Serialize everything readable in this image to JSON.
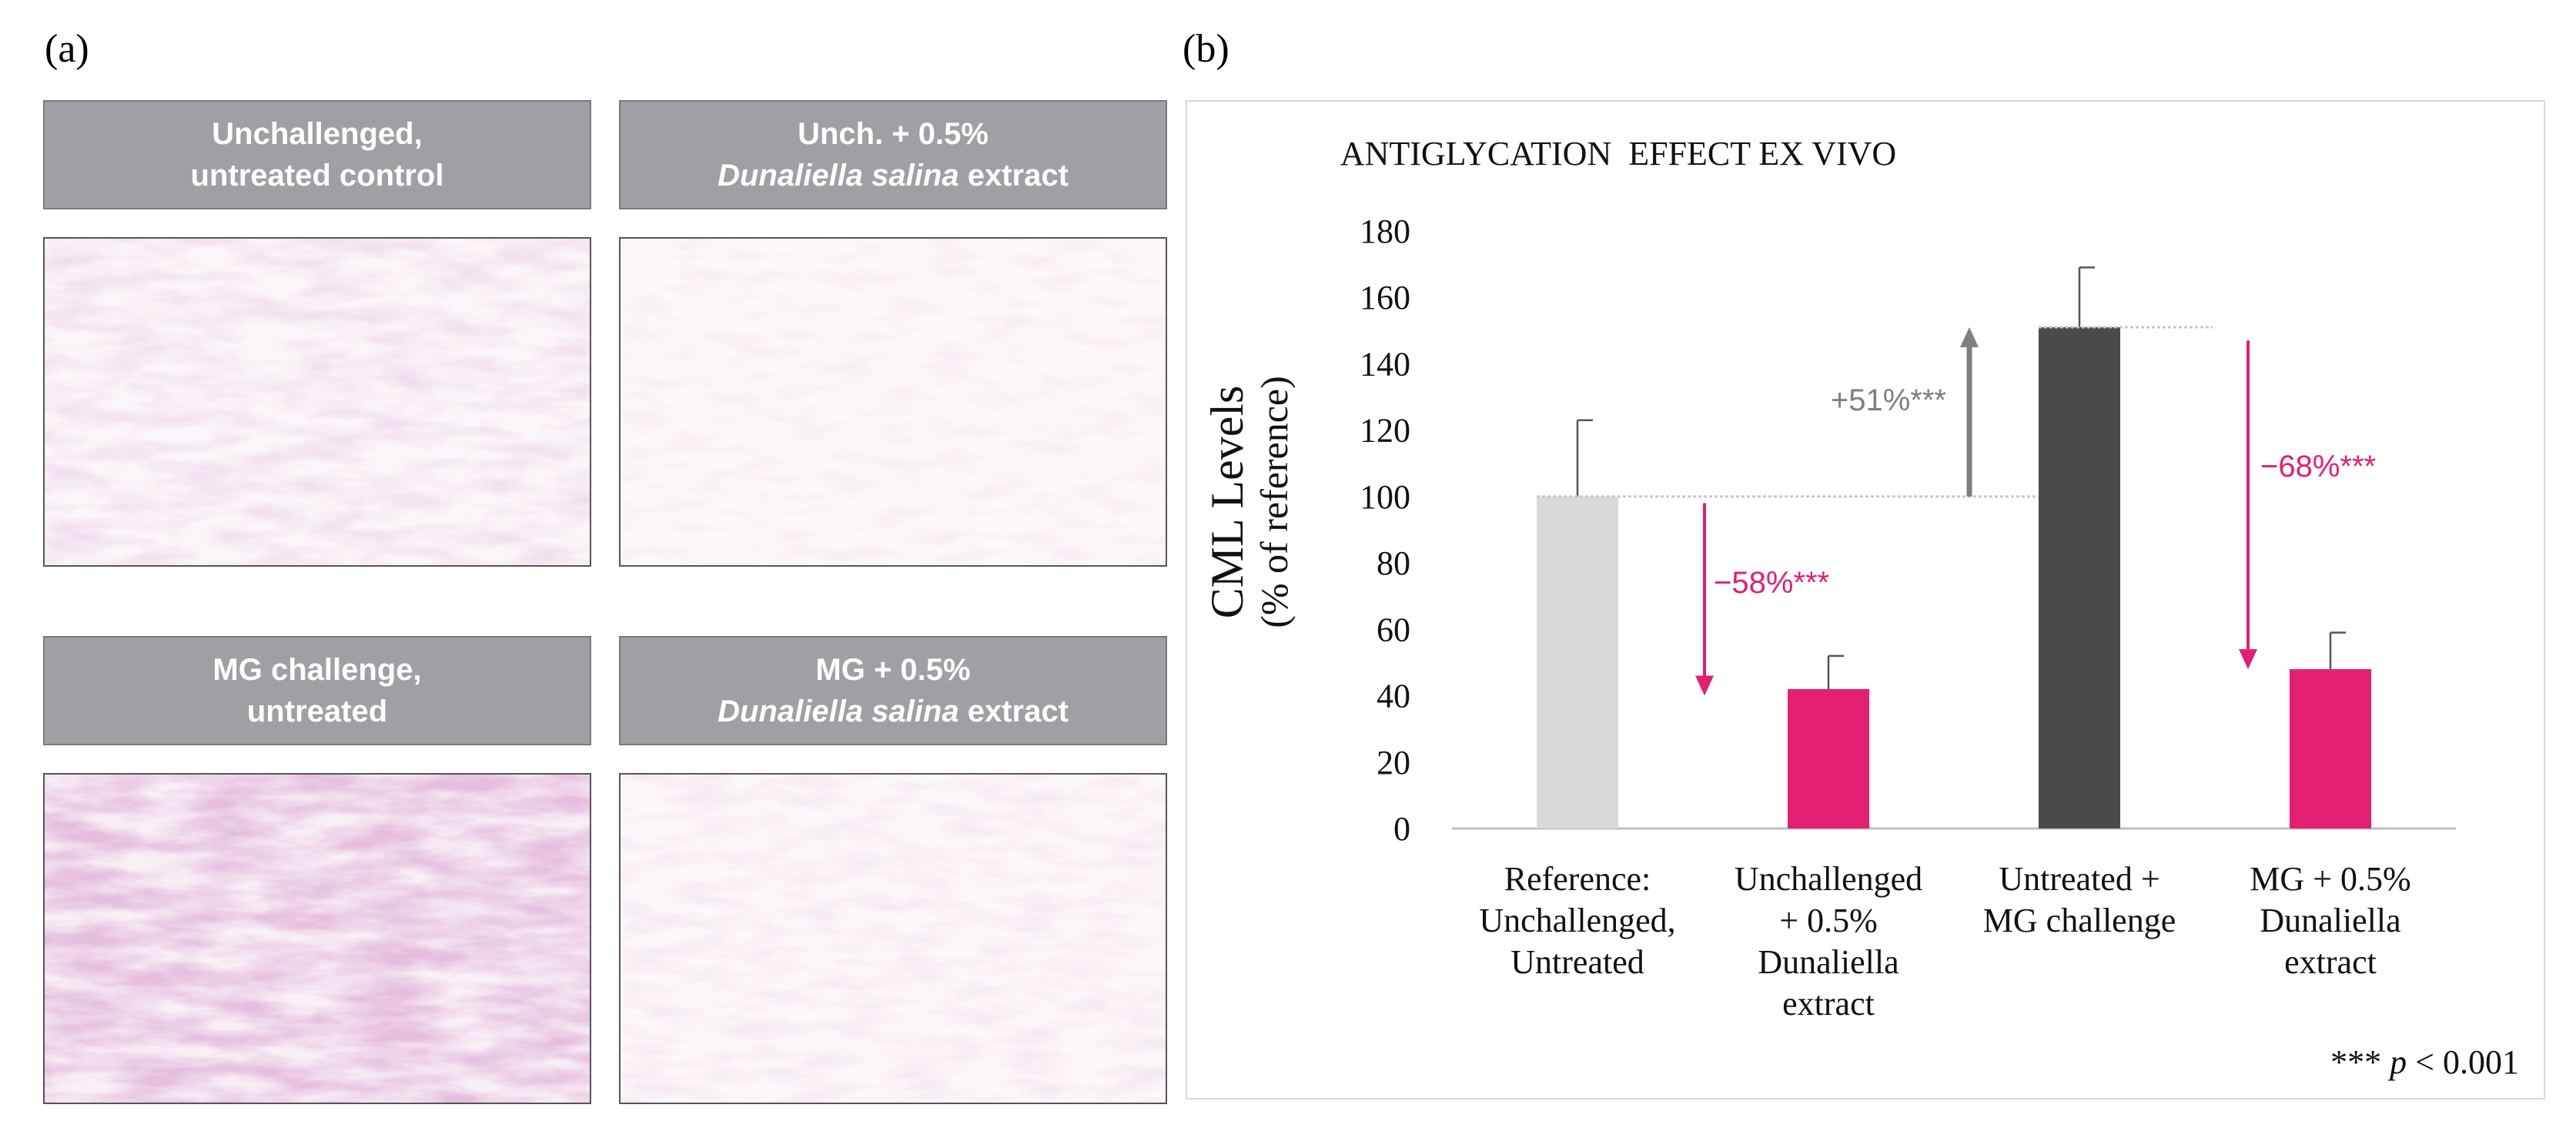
{
  "panel_a_label": "(a)",
  "panel_b_label": "(b)",
  "tiles": [
    {
      "line1": "Unchallenged,",
      "line2_pre": "",
      "line2_em": "",
      "line2_post": "untreated control"
    },
    {
      "line1": "Unch. + 0.5%",
      "line2_pre": "",
      "line2_em": "Dunaliella salina",
      "line2_post": " extract"
    },
    {
      "line1": "MG challenge,",
      "line2_pre": "",
      "line2_em": "",
      "line2_post": "untreated"
    },
    {
      "line1": "MG + 0.5%",
      "line2_pre": "",
      "line2_em": "Dunaliella salina",
      "line2_post": " extract"
    }
  ],
  "colors": {
    "reference": "#d9d9d9",
    "treated": "#e31f73",
    "mg": "#4a4a4a",
    "increase_arrow": "#7f7f7f",
    "header_bg": "#a0a0a4",
    "stain": "#c48ab8"
  },
  "chart_data": {
    "type": "bar",
    "title": "ANTIGLYCATION  EFFECT EX VIVO",
    "ylabel": "CML Levels",
    "ylabel_sub": "(% of reference)",
    "xlabel": "",
    "ylim": [
      0,
      180
    ],
    "yticks": [
      0,
      20,
      40,
      60,
      80,
      100,
      120,
      140,
      160,
      180
    ],
    "categories": [
      [
        "Reference:",
        "Unchallenged,",
        "Untreated"
      ],
      [
        "Unchallenged",
        "+ 0.5%",
        "Dunaliella",
        "extract"
      ],
      [
        "Untreated +",
        "MG challenge"
      ],
      [
        "MG + 0.5%",
        "Dunaliella",
        "extract"
      ]
    ],
    "values": [
      100,
      42,
      151,
      48
    ],
    "errors": [
      23,
      10,
      18,
      11
    ],
    "bar_colors": [
      "#d9d9d9",
      "#e31f73",
      "#4a4a4a",
      "#e31f73"
    ],
    "annotations": [
      {
        "text": "+51%***",
        "from": 100,
        "to": 151,
        "kind": "increase"
      },
      {
        "text": "−58%***",
        "from": 100,
        "to": 42,
        "kind": "decrease"
      },
      {
        "text": "−68%***",
        "from": 151,
        "to": 48,
        "kind": "decrease"
      }
    ],
    "grid": false,
    "footnote_stars": "***",
    "footnote_p": "p",
    "footnote_rest": " < 0.001"
  }
}
